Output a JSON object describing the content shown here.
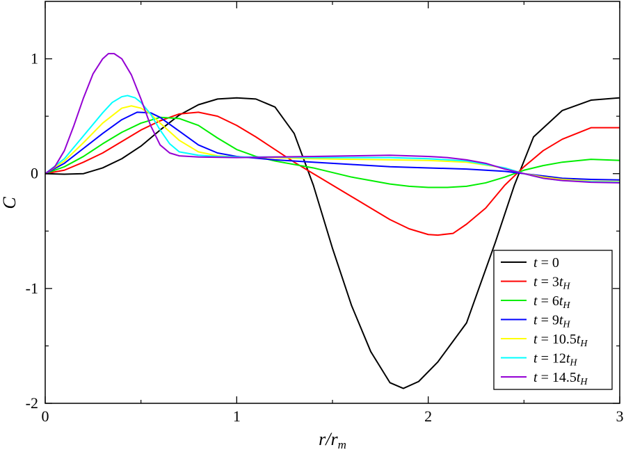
{
  "chart_data": {
    "type": "line",
    "title": "",
    "xlabel": "r/r_m",
    "ylabel": "C",
    "xlim": [
      0,
      3
    ],
    "ylim": [
      -2,
      1.5
    ],
    "x_ticks": [
      0,
      1,
      2,
      3
    ],
    "x_tick_labels": [
      "0",
      "1",
      "2",
      "3"
    ],
    "y_ticks": [
      -2,
      -1,
      0,
      1
    ],
    "y_tick_labels": [
      "-2",
      "-1",
      "0",
      "1"
    ],
    "grid": false,
    "legend_position": "bottom-right",
    "series": [
      {
        "name": "t = 0",
        "label_var": "t",
        "label_coef": "",
        "label_sub": "",
        "color": "#000000",
        "points": [
          [
            0,
            0
          ],
          [
            0.1,
            -0.005
          ],
          [
            0.2,
            0.0
          ],
          [
            0.3,
            0.05
          ],
          [
            0.4,
            0.13
          ],
          [
            0.5,
            0.24
          ],
          [
            0.6,
            0.38
          ],
          [
            0.7,
            0.51
          ],
          [
            0.8,
            0.6
          ],
          [
            0.9,
            0.65
          ],
          [
            1.0,
            0.66
          ],
          [
            1.1,
            0.65
          ],
          [
            1.2,
            0.58
          ],
          [
            1.3,
            0.35
          ],
          [
            1.4,
            -0.1
          ],
          [
            1.5,
            -0.65
          ],
          [
            1.6,
            -1.15
          ],
          [
            1.7,
            -1.55
          ],
          [
            1.8,
            -1.82
          ],
          [
            1.87,
            -1.87
          ],
          [
            1.95,
            -1.81
          ],
          [
            2.05,
            -1.64
          ],
          [
            2.2,
            -1.3
          ],
          [
            2.35,
            -0.6
          ],
          [
            2.45,
            -0.1
          ],
          [
            2.55,
            0.32
          ],
          [
            2.7,
            0.55
          ],
          [
            2.85,
            0.64
          ],
          [
            3.0,
            0.66
          ]
        ]
      },
      {
        "name": "t = 3t_H",
        "label_var": "t",
        "label_coef": "3",
        "label_sub": "H",
        "color": "#ff0000",
        "points": [
          [
            0,
            0
          ],
          [
            0.1,
            0.03
          ],
          [
            0.2,
            0.1
          ],
          [
            0.3,
            0.18
          ],
          [
            0.4,
            0.28
          ],
          [
            0.5,
            0.38
          ],
          [
            0.6,
            0.46
          ],
          [
            0.7,
            0.52
          ],
          [
            0.8,
            0.535
          ],
          [
            0.9,
            0.5
          ],
          [
            1.0,
            0.42
          ],
          [
            1.1,
            0.32
          ],
          [
            1.2,
            0.21
          ],
          [
            1.3,
            0.1
          ],
          [
            1.4,
            0.0
          ],
          [
            1.5,
            -0.1
          ],
          [
            1.6,
            -0.2
          ],
          [
            1.7,
            -0.3
          ],
          [
            1.8,
            -0.4
          ],
          [
            1.9,
            -0.48
          ],
          [
            2.0,
            -0.53
          ],
          [
            2.05,
            -0.535
          ],
          [
            2.13,
            -0.52
          ],
          [
            2.2,
            -0.44
          ],
          [
            2.3,
            -0.3
          ],
          [
            2.4,
            -0.1
          ],
          [
            2.5,
            0.06
          ],
          [
            2.6,
            0.2
          ],
          [
            2.7,
            0.3
          ],
          [
            2.85,
            0.4
          ],
          [
            3.0,
            0.4
          ]
        ]
      },
      {
        "name": "t = 6t_H",
        "label_var": "t",
        "label_coef": "6",
        "label_sub": "H",
        "color": "#00ee00",
        "points": [
          [
            0,
            0
          ],
          [
            0.1,
            0.06
          ],
          [
            0.2,
            0.15
          ],
          [
            0.3,
            0.26
          ],
          [
            0.4,
            0.36
          ],
          [
            0.5,
            0.44
          ],
          [
            0.6,
            0.49
          ],
          [
            0.7,
            0.48
          ],
          [
            0.8,
            0.42
          ],
          [
            0.9,
            0.31
          ],
          [
            1.0,
            0.21
          ],
          [
            1.1,
            0.15
          ],
          [
            1.2,
            0.11
          ],
          [
            1.3,
            0.08
          ],
          [
            1.4,
            0.05
          ],
          [
            1.5,
            0.01
          ],
          [
            1.6,
            -0.03
          ],
          [
            1.7,
            -0.06
          ],
          [
            1.8,
            -0.09
          ],
          [
            1.9,
            -0.11
          ],
          [
            2.0,
            -0.12
          ],
          [
            2.1,
            -0.12
          ],
          [
            2.2,
            -0.11
          ],
          [
            2.3,
            -0.08
          ],
          [
            2.4,
            -0.03
          ],
          [
            2.5,
            0.03
          ],
          [
            2.6,
            0.07
          ],
          [
            2.7,
            0.1
          ],
          [
            2.85,
            0.125
          ],
          [
            3.0,
            0.115
          ]
        ]
      },
      {
        "name": "t = 9t_H",
        "label_var": "t",
        "label_coef": "9",
        "label_sub": "H",
        "color": "#0000ff",
        "points": [
          [
            0,
            0
          ],
          [
            0.1,
            0.09
          ],
          [
            0.2,
            0.22
          ],
          [
            0.3,
            0.35
          ],
          [
            0.4,
            0.47
          ],
          [
            0.48,
            0.535
          ],
          [
            0.55,
            0.53
          ],
          [
            0.6,
            0.49
          ],
          [
            0.7,
            0.37
          ],
          [
            0.8,
            0.25
          ],
          [
            0.9,
            0.18
          ],
          [
            1.0,
            0.15
          ],
          [
            1.2,
            0.12
          ],
          [
            1.4,
            0.1
          ],
          [
            1.6,
            0.08
          ],
          [
            1.8,
            0.06
          ],
          [
            2.0,
            0.05
          ],
          [
            2.2,
            0.04
          ],
          [
            2.4,
            0.02
          ],
          [
            2.5,
            0.0
          ],
          [
            2.6,
            -0.02
          ],
          [
            2.7,
            -0.04
          ],
          [
            2.85,
            -0.05
          ],
          [
            3.0,
            -0.055
          ]
        ]
      },
      {
        "name": "t = 10.5t_H",
        "label_var": "t",
        "label_coef": "10.5",
        "label_sub": "H",
        "color": "#ffff00",
        "points": [
          [
            0,
            0
          ],
          [
            0.1,
            0.11
          ],
          [
            0.2,
            0.27
          ],
          [
            0.3,
            0.44
          ],
          [
            0.4,
            0.57
          ],
          [
            0.45,
            0.59
          ],
          [
            0.5,
            0.57
          ],
          [
            0.55,
            0.52
          ],
          [
            0.6,
            0.44
          ],
          [
            0.7,
            0.29
          ],
          [
            0.8,
            0.19
          ],
          [
            0.9,
            0.155
          ],
          [
            1.0,
            0.145
          ],
          [
            1.2,
            0.14
          ],
          [
            1.4,
            0.13
          ],
          [
            1.6,
            0.125
          ],
          [
            1.8,
            0.12
          ],
          [
            2.0,
            0.115
          ],
          [
            2.2,
            0.1
          ],
          [
            2.4,
            0.05
          ],
          [
            2.5,
            0.0
          ],
          [
            2.6,
            -0.03
          ],
          [
            2.7,
            -0.05
          ],
          [
            2.85,
            -0.065
          ],
          [
            3.0,
            -0.07
          ]
        ]
      },
      {
        "name": "t = 12t_H",
        "label_var": "t",
        "label_coef": "12",
        "label_sub": "H",
        "color": "#00ffff",
        "points": [
          [
            0,
            0
          ],
          [
            0.1,
            0.13
          ],
          [
            0.2,
            0.33
          ],
          [
            0.3,
            0.53
          ],
          [
            0.35,
            0.62
          ],
          [
            0.4,
            0.67
          ],
          [
            0.43,
            0.68
          ],
          [
            0.47,
            0.66
          ],
          [
            0.5,
            0.62
          ],
          [
            0.55,
            0.52
          ],
          [
            0.6,
            0.38
          ],
          [
            0.65,
            0.26
          ],
          [
            0.7,
            0.19
          ],
          [
            0.8,
            0.16
          ],
          [
            0.9,
            0.15
          ],
          [
            1.0,
            0.145
          ],
          [
            1.2,
            0.145
          ],
          [
            1.4,
            0.14
          ],
          [
            1.6,
            0.14
          ],
          [
            1.8,
            0.14
          ],
          [
            2.0,
            0.13
          ],
          [
            2.2,
            0.11
          ],
          [
            2.4,
            0.05
          ],
          [
            2.5,
            0.0
          ],
          [
            2.6,
            -0.04
          ],
          [
            2.7,
            -0.06
          ],
          [
            2.85,
            -0.07
          ],
          [
            3.0,
            -0.075
          ]
        ]
      },
      {
        "name": "t = 14.5t_H",
        "label_var": "t",
        "label_coef": "14.5",
        "label_sub": "H",
        "color": "#9400d3",
        "points": [
          [
            0,
            0
          ],
          [
            0.05,
            0.06
          ],
          [
            0.1,
            0.2
          ],
          [
            0.15,
            0.42
          ],
          [
            0.2,
            0.66
          ],
          [
            0.25,
            0.87
          ],
          [
            0.3,
            1.0
          ],
          [
            0.33,
            1.045
          ],
          [
            0.36,
            1.045
          ],
          [
            0.4,
            1.0
          ],
          [
            0.45,
            0.86
          ],
          [
            0.5,
            0.65
          ],
          [
            0.55,
            0.42
          ],
          [
            0.6,
            0.25
          ],
          [
            0.65,
            0.18
          ],
          [
            0.7,
            0.155
          ],
          [
            0.8,
            0.145
          ],
          [
            1.0,
            0.14
          ],
          [
            1.2,
            0.145
          ],
          [
            1.4,
            0.15
          ],
          [
            1.6,
            0.155
          ],
          [
            1.8,
            0.16
          ],
          [
            2.0,
            0.15
          ],
          [
            2.1,
            0.14
          ],
          [
            2.2,
            0.12
          ],
          [
            2.3,
            0.09
          ],
          [
            2.4,
            0.04
          ],
          [
            2.5,
            0.0
          ],
          [
            2.6,
            -0.04
          ],
          [
            2.7,
            -0.06
          ],
          [
            2.85,
            -0.075
          ],
          [
            3.0,
            -0.08
          ]
        ]
      }
    ]
  }
}
